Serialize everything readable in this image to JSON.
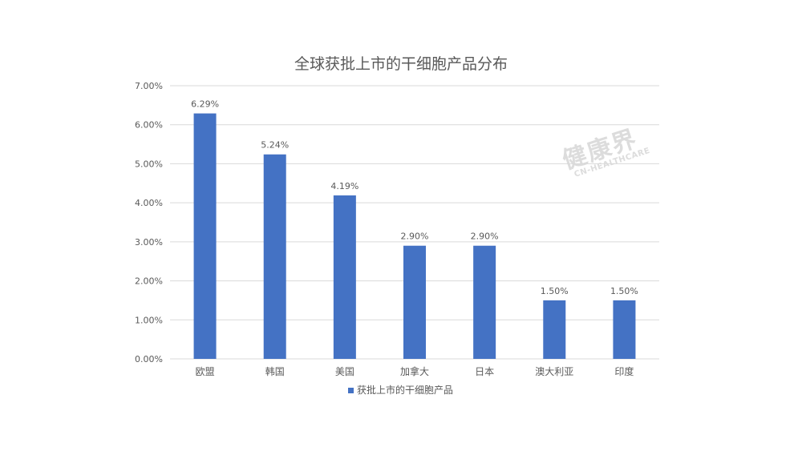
{
  "chart_data": {
    "type": "bar",
    "title": "全球获批上市的干细胞产品分布",
    "categories": [
      "欧盟",
      "韩国",
      "美国",
      "加拿大",
      "日本",
      "澳大利亚",
      "印度"
    ],
    "series": [
      {
        "name": "获批上市的干细胞产品",
        "values": [
          6.29,
          5.24,
          4.19,
          2.9,
          2.9,
          1.5,
          1.5
        ],
        "color": "#4472c4"
      }
    ],
    "data_labels": [
      "6.29%",
      "5.24%",
      "4.19%",
      "2.90%",
      "2.90%",
      "1.50%",
      "1.50%"
    ],
    "y_ticks": [
      "0.00%",
      "1.00%",
      "2.00%",
      "3.00%",
      "4.00%",
      "5.00%",
      "6.00%",
      "7.00%"
    ],
    "ylim": [
      0,
      7
    ],
    "grid": true,
    "legend_position": "bottom"
  },
  "watermark": {
    "title": "健康界",
    "subtitle": "CN-HEALTHCARE"
  },
  "colors": {
    "bar": "#4472c4",
    "grid": "#d9d9d9",
    "text": "#595959"
  }
}
